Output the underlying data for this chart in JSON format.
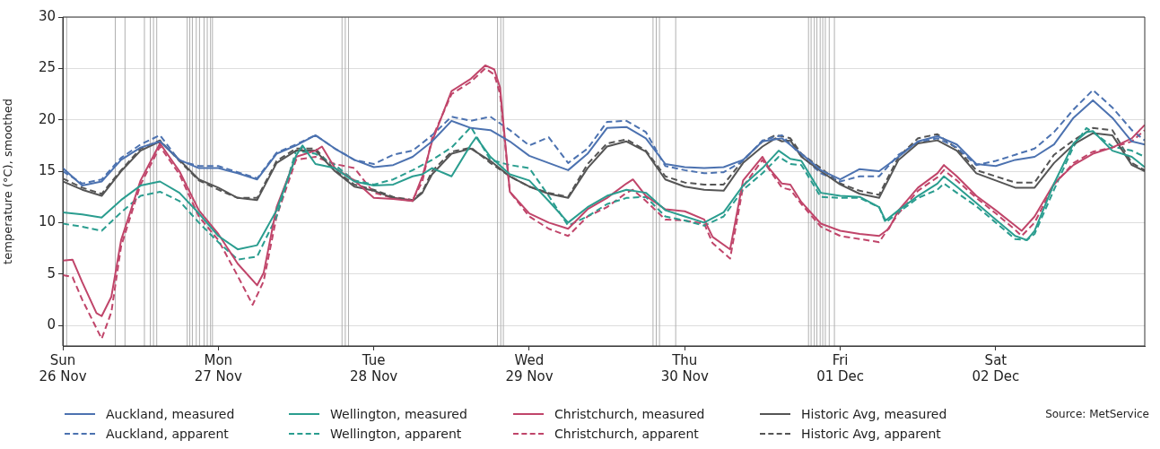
{
  "chart_data": {
    "type": "line",
    "ylabel": "temperature (°C), smoothed",
    "xlim": [
      "--11-26T00:00",
      "--12-02T23:00"
    ],
    "xticks": [
      {
        "value": "--11-26",
        "label": "Sun\n26 Nov"
      },
      {
        "value": "--11-27",
        "label": "Mon\n27 Nov"
      },
      {
        "value": "--11-28",
        "label": "Tue\n28 Nov"
      },
      {
        "value": "--11-29",
        "label": "Wed\n29 Nov"
      },
      {
        "value": "--11-30",
        "label": "Thu\n30 Nov"
      },
      {
        "value": "--12-01",
        "label": "Fri\n01 Dec"
      },
      {
        "value": "--12-02",
        "label": "Sat\n02 Dec"
      }
    ],
    "ylim": [
      -2,
      30
    ],
    "yticks": [
      0,
      5,
      10,
      15,
      20,
      25,
      30
    ],
    "grid": "y",
    "legend": "bottom",
    "marker": "none",
    "annotations": [
      "Source: MetService"
    ],
    "x": [
      "--11-26T00:00",
      "--11-26T03:00",
      "--11-26T06:00",
      "--11-26T09:00",
      "--11-26T12:00",
      "--11-26T15:00",
      "--11-26T18:00",
      "--11-26T21:00",
      "--11-27T00:00",
      "--11-27T03:00",
      "--11-27T06:00",
      "--11-27T09:00",
      "--11-27T12:00",
      "--11-27T15:00",
      "--11-27T18:00",
      "--11-27T21:00",
      "--11-28T00:00",
      "--11-28T03:00",
      "--11-28T06:00",
      "--11-28T09:00",
      "--11-28T12:00",
      "--11-28T15:00",
      "--11-28T18:00",
      "--11-28T21:00",
      "--11-29T00:00",
      "--11-29T03:00",
      "--11-29T06:00",
      "--11-29T09:00",
      "--11-29T12:00",
      "--11-29T15:00",
      "--11-29T18:00",
      "--11-29T21:00",
      "--11-30T00:00",
      "--11-30T03:00",
      "--11-30T06:00",
      "--11-30T09:00",
      "--11-30T12:00",
      "--11-30T15:00",
      "--11-30T18:00",
      "--11-30T21:00",
      "--12-01T00:00",
      "--12-01T03:00",
      "--12-01T06:00",
      "--12-01T09:00",
      "--12-01T12:00",
      "--12-01T15:00",
      "--12-01T18:00",
      "--12-01T21:00",
      "--12-02T00:00",
      "--12-02T03:00",
      "--12-02T06:00",
      "--12-02T09:00",
      "--12-02T12:00",
      "--12-02T15:00",
      "--12-02T18:00",
      "--12-02T21:00",
      "--12-02T23:00"
    ],
    "series": [
      {
        "name": "Auckland, measured",
        "color": "#4c72b0",
        "line_style": "solid",
        "values": [
          15.3,
          13.6,
          14.0,
          16.1,
          17.3,
          17.9,
          16.1,
          15.3,
          15.3,
          14.8,
          14.2,
          16.7,
          17.5,
          18.5,
          17.2,
          16.1,
          15.4,
          15.6,
          16.4,
          17.9,
          19.9,
          19.2,
          19.0,
          17.9,
          16.5,
          15.8,
          15.1,
          16.7,
          19.2,
          19.3,
          18.2,
          15.7,
          15.4,
          15.3,
          15.4,
          16.1,
          17.9,
          18.2,
          16.7,
          15.1,
          14.2,
          15.2,
          15.0,
          16.4,
          17.9,
          18.4,
          17.6,
          15.7,
          15.5,
          16.1,
          16.4,
          17.6,
          20.2,
          21.9,
          20.2,
          17.9,
          17.6
        ]
      },
      {
        "name": "Wellington, measured",
        "color": "#2a9d8f",
        "line_style": "solid",
        "x": [
          "--11-26T00:00",
          "--11-26T03:00",
          "--11-26T06:00",
          "--11-26T09:00",
          "--11-26T12:00",
          "--11-26T15:00",
          "--11-26T18:00",
          "--11-26T21:00",
          "--11-27T00:00",
          "--11-27T03:00",
          "--11-27T06:00",
          "--11-27T09:00",
          "--11-27T12:00",
          "--11-27T13:00",
          "--11-27T15:00",
          "--11-27T18:00",
          "--11-27T21:00",
          "--11-28T00:00",
          "--11-28T03:00",
          "--11-28T06:00",
          "--11-28T07:30",
          "--11-28T09:00",
          "--11-28T12:00",
          "--11-28T15:00",
          "--11-28T15:48",
          "--11-28T18:00",
          "--11-28T21:00",
          "--11-29T00:00",
          "--11-29T03:00",
          "--11-29T06:00",
          "--11-29T09:00",
          "--11-29T12:00",
          "--11-29T15:00",
          "--11-29T18:00",
          "--11-29T21:00",
          "--11-30T00:00",
          "--11-30T03:00",
          "--11-30T06:00",
          "--11-30T09:00",
          "--11-30T12:00",
          "--11-30T14:30",
          "--11-30T16:18",
          "--11-30T18:00",
          "--11-30T21:00",
          "--12-01T00:00",
          "--12-01T03:00",
          "--12-01T06:00",
          "--12-01T07:00",
          "--12-01T09:00",
          "--12-01T12:00",
          "--12-01T15:00",
          "--12-01T16:00",
          "--12-01T18:00",
          "--12-01T21:00",
          "--12-02T00:00",
          "--12-02T03:00",
          "--12-02T04:48",
          "--12-02T06:00",
          "--12-02T09:00",
          "--12-02T12:00",
          "--12-02T14:00",
          "--12-02T15:00",
          "--12-02T18:00",
          "--12-02T21:00",
          "--12-02T23:00"
        ],
        "values": [
          11.0,
          10.8,
          10.5,
          12.2,
          13.6,
          14.0,
          12.9,
          10.9,
          8.7,
          7.4,
          7.8,
          11.2,
          16.5,
          17.5,
          15.7,
          15.3,
          14.0,
          13.6,
          13.7,
          14.5,
          14.7,
          15.3,
          14.5,
          17.6,
          18.3,
          16.4,
          14.7,
          14.1,
          12.1,
          10.0,
          11.5,
          12.6,
          13.2,
          12.9,
          11.2,
          10.6,
          10.0,
          11.0,
          13.6,
          15.3,
          17.0,
          16.2,
          16.0,
          12.9,
          12.6,
          12.5,
          11.5,
          10.2,
          11.2,
          12.6,
          13.8,
          14.5,
          13.5,
          11.9,
          10.3,
          8.7,
          8.3,
          9.2,
          13.8,
          17.7,
          18.8,
          18.9,
          17.0,
          16.4,
          15.4
        ]
      },
      {
        "name": "Christchurch, measured",
        "color": "#c0456a",
        "line_style": "solid",
        "x": [
          "--11-26T00:00",
          "--11-26T01:30",
          "--11-26T03:00",
          "--11-26T05:12",
          "--11-26T06:00",
          "--11-26T07:30",
          "--11-26T09:00",
          "--11-26T12:00",
          "--11-26T15:00",
          "--11-26T18:00",
          "--11-26T21:00",
          "--11-27T00:00",
          "--11-27T03:00",
          "--11-27T06:00",
          "--11-27T07:00",
          "--11-27T09:00",
          "--11-27T12:00",
          "--11-27T15:00",
          "--11-27T16:00",
          "--11-27T18:00",
          "--11-27T21:00",
          "--11-28T00:00",
          "--11-28T03:00",
          "--11-28T06:00",
          "--11-28T07:30",
          "--11-28T09:00",
          "--11-28T12:00",
          "--11-28T15:00",
          "--11-28T17:12",
          "--11-28T18:36",
          "--11-28T19:30",
          "--11-28T21:00",
          "--11-29T00:00",
          "--11-29T03:00",
          "--11-29T06:00",
          "--11-29T09:00",
          "--11-29T12:00",
          "--11-29T15:00",
          "--11-29T16:00",
          "--11-29T18:00",
          "--11-29T21:00",
          "--11-30T00:00",
          "--11-30T03:00",
          "--11-30T04:18",
          "--11-30T07:00",
          "--11-30T09:00",
          "--11-30T12:00",
          "--11-30T13:00",
          "--11-30T15:00",
          "--11-30T16:18",
          "--11-30T18:00",
          "--11-30T21:00",
          "--12-01T00:00",
          "--12-01T03:00",
          "--12-01T06:00",
          "--12-01T07:30",
          "--12-01T09:00",
          "--12-01T12:00",
          "--12-01T15:00",
          "--12-01T16:00",
          "--12-01T18:00",
          "--12-01T21:00",
          "--12-02T00:00",
          "--12-02T03:00",
          "--12-02T04:00",
          "--12-02T06:00",
          "--12-02T09:00",
          "--12-02T12:00",
          "--12-02T15:00",
          "--12-02T18:00",
          "--12-02T21:00",
          "--12-02T23:00"
        ],
        "values": [
          6.3,
          6.4,
          4.2,
          1.2,
          0.9,
          2.8,
          8.3,
          14.1,
          17.7,
          15.0,
          11.2,
          8.9,
          6.0,
          3.9,
          5.1,
          11.5,
          16.4,
          17.0,
          17.4,
          15.3,
          14.1,
          12.4,
          12.3,
          12.1,
          14.5,
          17.9,
          22.8,
          24.0,
          25.3,
          24.9,
          23.1,
          13.0,
          10.9,
          10.0,
          9.4,
          11.3,
          12.4,
          13.8,
          14.2,
          12.6,
          11.3,
          11.1,
          10.3,
          8.6,
          7.4,
          14.1,
          16.4,
          15.3,
          13.8,
          13.7,
          12.0,
          9.9,
          9.2,
          8.9,
          8.7,
          9.4,
          11.2,
          13.4,
          14.8,
          15.6,
          14.5,
          12.6,
          11.2,
          9.7,
          9.2,
          10.6,
          13.8,
          15.6,
          16.7,
          17.3,
          18.2,
          19.5
        ]
      },
      {
        "name": "Historic Avg, measured",
        "color": "#555555",
        "line_style": "solid",
        "x": [
          "--11-26T00:00",
          "--11-26T03:00",
          "--11-26T06:00",
          "--11-26T09:00",
          "--11-26T12:00",
          "--11-26T15:00",
          "--11-26T18:00",
          "--11-26T21:00",
          "--11-27T00:00",
          "--11-27T03:00",
          "--11-27T06:00",
          "--11-27T09:00",
          "--11-27T12:00",
          "--11-27T15:00",
          "--11-27T18:00",
          "--11-27T21:00",
          "--11-28T00:00",
          "--11-28T03:00",
          "--11-28T06:00",
          "--11-28T07:30",
          "--11-28T09:00",
          "--11-28T12:00",
          "--11-28T15:00",
          "--11-28T18:00",
          "--11-28T21:00",
          "--11-29T00:00",
          "--11-29T03:00",
          "--11-29T06:00",
          "--11-29T09:00",
          "--11-29T12:00",
          "--11-29T15:00",
          "--11-29T18:00",
          "--11-29T21:00",
          "--11-30T00:00",
          "--11-30T03:00",
          "--11-30T06:00",
          "--11-30T09:00",
          "--11-30T12:00",
          "--11-30T14:00",
          "--11-30T15:00",
          "--11-30T16:18",
          "--11-30T18:00",
          "--11-30T21:00",
          "--12-01T00:00",
          "--12-01T03:00",
          "--12-01T06:00",
          "--12-01T09:00",
          "--12-01T12:00",
          "--12-01T15:00",
          "--12-01T18:00",
          "--12-01T21:00",
          "--12-02T00:00",
          "--12-02T03:00",
          "--12-02T06:00",
          "--12-02T09:00",
          "--12-02T12:00",
          "--12-02T15:00",
          "--12-02T18:00",
          "--12-02T21:00",
          "--12-02T23:00"
        ],
        "values": [
          14.0,
          13.2,
          12.6,
          15.0,
          17.0,
          17.9,
          16.1,
          14.2,
          13.4,
          12.4,
          12.2,
          15.8,
          17.0,
          17.0,
          15.0,
          13.5,
          13.1,
          12.4,
          12.1,
          12.9,
          14.7,
          16.7,
          17.2,
          16.0,
          14.5,
          13.5,
          12.8,
          12.4,
          15.3,
          17.4,
          17.9,
          16.9,
          14.2,
          13.5,
          13.2,
          13.1,
          15.8,
          17.4,
          18.2,
          17.9,
          18.0,
          16.4,
          15.0,
          13.7,
          12.8,
          12.4,
          16.1,
          17.7,
          18.0,
          17.0,
          14.8,
          14.1,
          13.4,
          13.4,
          15.8,
          17.6,
          18.7,
          18.5,
          15.6,
          15.0
        ]
      },
      {
        "name": "Auckland, apparent",
        "color": "#4c72b0",
        "line_style": "dashed",
        "values": [
          15.0,
          13.8,
          14.2,
          16.3,
          17.6,
          18.5,
          16.0,
          15.5,
          15.5,
          14.9,
          14.3,
          16.8,
          17.6,
          18.5,
          17.2,
          16.1,
          15.7,
          16.6,
          17.0,
          18.5,
          20.3,
          19.9,
          20.3,
          19.0,
          17.5,
          18.3,
          15.8,
          17.2,
          19.8,
          19.9,
          18.8,
          15.5,
          15.1,
          14.8,
          14.9,
          16.0,
          18.0,
          18.5,
          16.5,
          14.8,
          14.0,
          14.5,
          14.5,
          16.6,
          17.8,
          18.2,
          17.3,
          15.6,
          16.0,
          16.6,
          17.2,
          18.8,
          21.0,
          22.9,
          21.2,
          19.0,
          18.0
        ]
      },
      {
        "name": "Wellington, apparent",
        "color": "#2a9d8f",
        "line_style": "dashed",
        "x": [
          "--11-26T00:00",
          "--11-26T03:00",
          "--11-26T06:00",
          "--11-26T09:00",
          "--11-26T12:00",
          "--11-26T15:00",
          "--11-26T18:00",
          "--11-26T21:00",
          "--11-27T00:00",
          "--11-27T03:00",
          "--11-27T06:00",
          "--11-27T09:00",
          "--11-27T12:00",
          "--11-27T15:00",
          "--11-27T18:00",
          "--11-27T21:00",
          "--11-28T00:00",
          "--11-28T03:00",
          "--11-28T06:00",
          "--11-28T09:00",
          "--11-28T12:00",
          "--11-28T15:00",
          "--11-28T18:00",
          "--11-28T21:00",
          "--11-29T00:00",
          "--11-29T03:00",
          "--11-29T06:00",
          "--11-29T09:00",
          "--11-29T12:00",
          "--11-29T15:00",
          "--11-29T18:00",
          "--11-29T21:00",
          "--11-30T00:00",
          "--11-30T03:00",
          "--11-30T06:00",
          "--11-30T09:00",
          "--11-30T12:00",
          "--11-30T14:30",
          "--11-30T16:18",
          "--11-30T18:00",
          "--11-30T21:00",
          "--12-01T00:00",
          "--12-01T03:00",
          "--12-01T06:00",
          "--12-01T07:00",
          "--12-01T09:00",
          "--12-01T12:00",
          "--12-01T15:00",
          "--12-01T16:00",
          "--12-01T18:00",
          "--12-01T21:00",
          "--12-02T00:00",
          "--12-02T03:00",
          "--12-02T04:48",
          "--12-02T06:00",
          "--12-02T09:00",
          "--12-02T12:00",
          "--12-02T14:00",
          "--12-02T15:00",
          "--12-02T18:00",
          "--12-02T21:00",
          "--12-02T23:00"
        ],
        "values": [
          9.9,
          9.6,
          9.2,
          11.0,
          12.6,
          13.0,
          12.1,
          10.0,
          8.1,
          6.4,
          6.7,
          10.6,
          17.0,
          16.7,
          15.6,
          14.1,
          13.7,
          14.2,
          15.1,
          16.1,
          17.3,
          19.3,
          16.1,
          15.6,
          15.3,
          12.6,
          9.7,
          10.6,
          11.8,
          12.4,
          12.5,
          10.6,
          10.2,
          9.7,
          10.6,
          13.2,
          14.8,
          16.4,
          15.7,
          15.6,
          12.5,
          12.4,
          12.4,
          11.5,
          10.0,
          11.0,
          12.4,
          13.2,
          13.8,
          12.9,
          11.6,
          10.0,
          8.4,
          8.3,
          8.9,
          13.2,
          17.4,
          19.2,
          18.8,
          17.4,
          17.0,
          16.4
        ]
      },
      {
        "name": "Christchurch, apparent",
        "color": "#c0456a",
        "line_style": "dashed",
        "x": [
          "--11-26T00:00",
          "--11-26T01:30",
          "--11-26T03:00",
          "--11-26T06:00",
          "--11-26T07:30",
          "--11-26T09:00",
          "--11-26T12:00",
          "--11-26T15:00",
          "--11-26T18:00",
          "--11-26T21:00",
          "--11-27T00:00",
          "--11-27T03:00",
          "--11-27T05:18",
          "--11-27T07:00",
          "--11-27T09:00",
          "--11-27T12:00",
          "--11-27T15:00",
          "--11-27T18:00",
          "--11-27T21:00",
          "--11-28T00:00",
          "--11-28T03:00",
          "--11-28T06:00",
          "--11-28T07:30",
          "--11-28T09:00",
          "--11-28T12:00",
          "--11-28T15:00",
          "--11-28T17:12",
          "--11-28T18:36",
          "--11-28T19:30",
          "--11-28T21:00",
          "--11-29T00:00",
          "--11-29T03:00",
          "--11-29T06:00",
          "--11-29T09:00",
          "--11-29T12:00",
          "--11-29T15:00",
          "--11-29T16:00",
          "--11-29T18:00",
          "--11-29T21:00",
          "--11-30T00:00",
          "--11-30T03:00",
          "--11-30T04:18",
          "--11-30T07:00",
          "--11-30T09:00",
          "--11-30T12:00",
          "--11-30T15:00",
          "--11-30T16:18",
          "--11-30T18:00",
          "--11-30T21:00",
          "--12-01T00:00",
          "--12-01T03:00",
          "--12-01T06:00",
          "--12-01T09:00",
          "--12-01T12:00",
          "--12-01T15:00",
          "--12-01T16:00",
          "--12-01T18:00",
          "--12-01T21:00",
          "--12-02T00:00",
          "--12-02T03:00",
          "--12-02T04:00",
          "--12-02T06:00",
          "--12-02T09:00",
          "--12-02T12:00",
          "--12-02T15:00",
          "--12-02T18:00",
          "--12-02T21:00",
          "--12-02T23:00"
        ],
        "values": [
          4.9,
          4.7,
          2.5,
          -1.3,
          1.3,
          7.7,
          13.7,
          17.4,
          14.7,
          10.6,
          8.3,
          4.8,
          2.0,
          4.3,
          10.6,
          16.1,
          16.4,
          15.7,
          15.3,
          12.9,
          12.4,
          12.2,
          14.0,
          18.2,
          22.5,
          23.7,
          25.0,
          24.4,
          22.5,
          13.0,
          10.6,
          9.4,
          8.7,
          10.6,
          11.5,
          12.9,
          13.2,
          12.1,
          10.3,
          10.2,
          9.9,
          8.0,
          6.5,
          13.5,
          16.1,
          13.4,
          13.2,
          11.8,
          9.6,
          8.7,
          8.4,
          8.1,
          10.9,
          13.1,
          14.4,
          15.1,
          14.1,
          12.4,
          10.9,
          9.3,
          8.7,
          10.0,
          13.7,
          15.8,
          16.9,
          17.3,
          17.9,
          19.0
        ]
      },
      {
        "name": "Historic Avg, apparent",
        "color": "#555555",
        "line_style": "dashed",
        "x": [
          "--11-26T00:00",
          "--11-26T03:00",
          "--11-26T06:00",
          "--11-26T09:00",
          "--11-26T12:00",
          "--11-26T15:00",
          "--11-26T18:00",
          "--11-26T21:00",
          "--11-27T00:00",
          "--11-27T03:00",
          "--11-27T06:00",
          "--11-27T09:00",
          "--11-27T12:00",
          "--11-27T15:00",
          "--11-27T18:00",
          "--11-27T21:00",
          "--11-28T00:00",
          "--11-28T03:00",
          "--11-28T06:00",
          "--11-28T07:30",
          "--11-28T09:00",
          "--11-28T12:00",
          "--11-28T15:00",
          "--11-28T18:00",
          "--11-28T21:00",
          "--11-29T00:00",
          "--11-29T03:00",
          "--11-29T06:00",
          "--11-29T09:00",
          "--11-29T12:00",
          "--11-29T15:00",
          "--11-29T18:00",
          "--11-29T21:00",
          "--11-30T00:00",
          "--11-30T03:00",
          "--11-30T06:00",
          "--11-30T09:00",
          "--11-30T12:00",
          "--11-30T14:00",
          "--11-30T15:00",
          "--11-30T16:18",
          "--11-30T18:00",
          "--11-30T21:00",
          "--12-01T00:00",
          "--12-01T03:00",
          "--12-01T06:00",
          "--12-01T09:00",
          "--12-01T12:00",
          "--12-01T15:00",
          "--12-01T18:00",
          "--12-01T21:00",
          "--12-02T00:00",
          "--12-02T03:00",
          "--12-02T06:00",
          "--12-02T09:00",
          "--12-02T12:00",
          "--12-02T15:00",
          "--12-02T18:00",
          "--12-02T21:00",
          "--12-02T23:00"
        ],
        "values": [
          14.3,
          13.4,
          12.8,
          15.1,
          17.2,
          18.0,
          16.0,
          14.1,
          13.2,
          12.4,
          12.4,
          16.0,
          17.2,
          17.2,
          15.1,
          13.7,
          13.2,
          12.5,
          12.2,
          13.0,
          15.0,
          16.9,
          17.3,
          15.8,
          14.5,
          13.5,
          12.9,
          12.5,
          15.7,
          17.7,
          18.1,
          17.0,
          14.5,
          13.9,
          13.7,
          13.7,
          16.1,
          17.9,
          18.5,
          18.4,
          18.2,
          16.7,
          15.3,
          13.8,
          13.1,
          12.7,
          16.4,
          18.2,
          18.6,
          17.2,
          15.1,
          14.5,
          13.9,
          13.9,
          16.6,
          18.0,
          19.2,
          19.0,
          15.8,
          15.1
        ]
      }
    ],
    "ref_lines": [
      {
        "axis": "x",
        "value": "--11-26T00:36",
        "color": "#b0b0b0"
      },
      {
        "axis": "x",
        "value": "--11-26T08:06",
        "color": "#b0b0b0"
      },
      {
        "axis": "x",
        "value": "--11-26T09:36",
        "color": "#b0b0b0"
      },
      {
        "axis": "x",
        "value": "--11-26T12:36",
        "color": "#b0b0b0"
      },
      {
        "axis": "x",
        "value": "--11-26T13:30",
        "color": "#b0b0b0"
      },
      {
        "axis": "x",
        "value": "--11-26T14:00",
        "color": "#b0b0b0"
      },
      {
        "axis": "x",
        "value": "--11-26T14:30",
        "color": "#b0b0b0"
      },
      {
        "axis": "x",
        "value": "--11-26T19:12",
        "color": "#b0b0b0"
      },
      {
        "axis": "x",
        "value": "--11-26T19:36",
        "color": "#b0b0b0"
      },
      {
        "axis": "x",
        "value": "--11-26T20:00",
        "color": "#b0b0b0"
      },
      {
        "axis": "x",
        "value": "--11-26T20:36",
        "color": "#b0b0b0"
      },
      {
        "axis": "x",
        "value": "--11-26T21:06",
        "color": "#b0b0b0"
      },
      {
        "axis": "x",
        "value": "--11-26T21:48",
        "color": "#b0b0b0"
      },
      {
        "axis": "x",
        "value": "--11-26T22:18",
        "color": "#b0b0b0"
      },
      {
        "axis": "x",
        "value": "--11-26T22:48",
        "color": "#b0b0b0"
      },
      {
        "axis": "x",
        "value": "--11-26T23:06",
        "color": "#b0b0b0"
      },
      {
        "axis": "x",
        "value": "--11-27T19:06",
        "color": "#b0b0b0"
      },
      {
        "axis": "x",
        "value": "--11-27T19:36",
        "color": "#b0b0b0"
      },
      {
        "axis": "x",
        "value": "--11-27T20:06",
        "color": "#b0b0b0"
      },
      {
        "axis": "x",
        "value": "--11-28T19:06",
        "color": "#b0b0b0"
      },
      {
        "axis": "x",
        "value": "--11-28T19:36",
        "color": "#b0b0b0"
      },
      {
        "axis": "x",
        "value": "--11-28T20:00",
        "color": "#b0b0b0"
      },
      {
        "axis": "x",
        "value": "--11-29T19:06",
        "color": "#b0b0b0"
      },
      {
        "axis": "x",
        "value": "--11-29T19:36",
        "color": "#b0b0b0"
      },
      {
        "axis": "x",
        "value": "--11-29T20:06",
        "color": "#b0b0b0"
      },
      {
        "axis": "x",
        "value": "--11-29T22:36",
        "color": "#b0b0b0"
      },
      {
        "axis": "x",
        "value": "--11-30T19:06",
        "color": "#b0b0b0"
      },
      {
        "axis": "x",
        "value": "--11-30T19:30",
        "color": "#b0b0b0"
      },
      {
        "axis": "x",
        "value": "--11-30T20:00",
        "color": "#b0b0b0"
      },
      {
        "axis": "x",
        "value": "--11-30T20:24",
        "color": "#b0b0b0"
      },
      {
        "axis": "x",
        "value": "--11-30T20:54",
        "color": "#b0b0b0"
      },
      {
        "axis": "x",
        "value": "--11-30T21:18",
        "color": "#b0b0b0"
      },
      {
        "axis": "x",
        "value": "--11-30T21:42",
        "color": "#b0b0b0"
      },
      {
        "axis": "x",
        "value": "--11-30T22:18",
        "color": "#b0b0b0"
      },
      {
        "axis": "x",
        "value": "--11-30T23:06",
        "color": "#b0b0b0"
      }
    ]
  }
}
